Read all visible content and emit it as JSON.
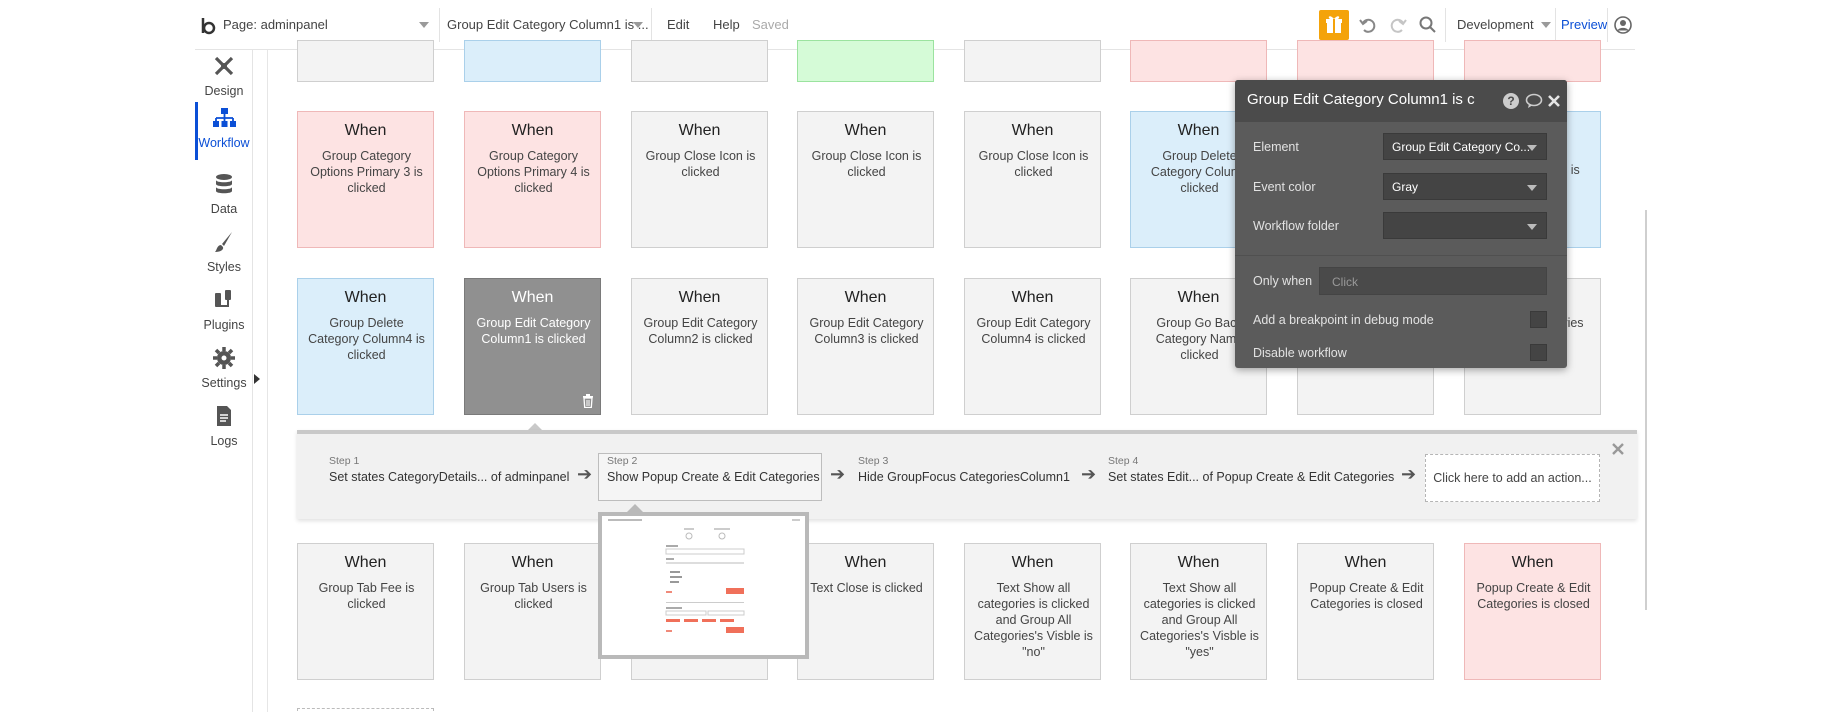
{
  "topbar": {
    "logo": "b",
    "page_label": "Page: adminpanel",
    "event_select": "Group Edit Category Column1 is ...",
    "edit": "Edit",
    "help": "Help",
    "saved": "Saved",
    "environment": "Development",
    "preview": "Preview"
  },
  "sidebar": {
    "items": [
      {
        "label": "Design",
        "icon": "design-icon"
      },
      {
        "label": "Workflow",
        "icon": "workflow-icon"
      },
      {
        "label": "Data",
        "icon": "database-icon"
      },
      {
        "label": "Styles",
        "icon": "brush-icon"
      },
      {
        "label": "Plugins",
        "icon": "plug-icon"
      },
      {
        "label": "Settings",
        "icon": "gear-icon"
      },
      {
        "label": "Logs",
        "icon": "document-icon"
      }
    ]
  },
  "cards": {
    "when": "When",
    "row2": [
      "Group Category Options Primary 3 is clicked",
      "Group Category Options Primary 4 is clicked",
      "Group Close Icon is clicked",
      "Group Close Icon is clicked",
      "Group Close Icon is clicked",
      "Group Delete Category Column clicked",
      "",
      "3 is"
    ],
    "row3": [
      "Group Delete Category Column4 is clicked",
      "Group Edit Category Column1 is clicked",
      "Group Edit Category Column2 is clicked",
      "Group Edit Category Column3 is clicked",
      "Group Edit Category Column4 is clicked",
      "Group Go Back Category Name clicked",
      "",
      "ories"
    ],
    "row4": [
      "Group Tab Fee is clicked",
      "Group Tab Users is clicked",
      "",
      "Text Close is clicked",
      "Text Show all categories is clicked and Group All Categories's Visble is \"no\"",
      "Text Show all categories is clicked and Group All Categories's Visble is \"yes\"",
      "Popup Create & Edit Categories is closed",
      "Popup Create & Edit Categories is closed"
    ]
  },
  "steps": [
    {
      "num": "Step 1",
      "text": "Set states CategoryDetails... of adminpanel"
    },
    {
      "num": "Step 2",
      "text": "Show Popup Create & Edit Categories"
    },
    {
      "num": "Step 3",
      "text": "Hide GroupFocus CategoriesColumn1"
    },
    {
      "num": "Step 4",
      "text": "Set states Edit... of Popup Create & Edit Categories"
    }
  ],
  "add_action": "Click here to add an action...",
  "panel": {
    "title": "Group Edit Category Column1 is c",
    "element_label": "Element",
    "element_value": "Group Edit Category Co...",
    "color_label": "Event color",
    "color_value": "Gray",
    "folder_label": "Workflow folder",
    "folder_value": "",
    "only_when_label": "Only when",
    "only_when_placeholder": "Click",
    "breakpoint_label": "Add a breakpoint in debug mode",
    "disable_label": "Disable workflow"
  },
  "colors": {
    "accent_blue": "#0b4fd6",
    "gift_orange": "#f4a30a",
    "card_red": "#fde3e3",
    "card_blue": "#dbeefa",
    "card_green": "#d5fbd7",
    "card_gray": "#f3f3f3",
    "card_selected": "#909090",
    "panel_bg": "#5b5b5b"
  }
}
